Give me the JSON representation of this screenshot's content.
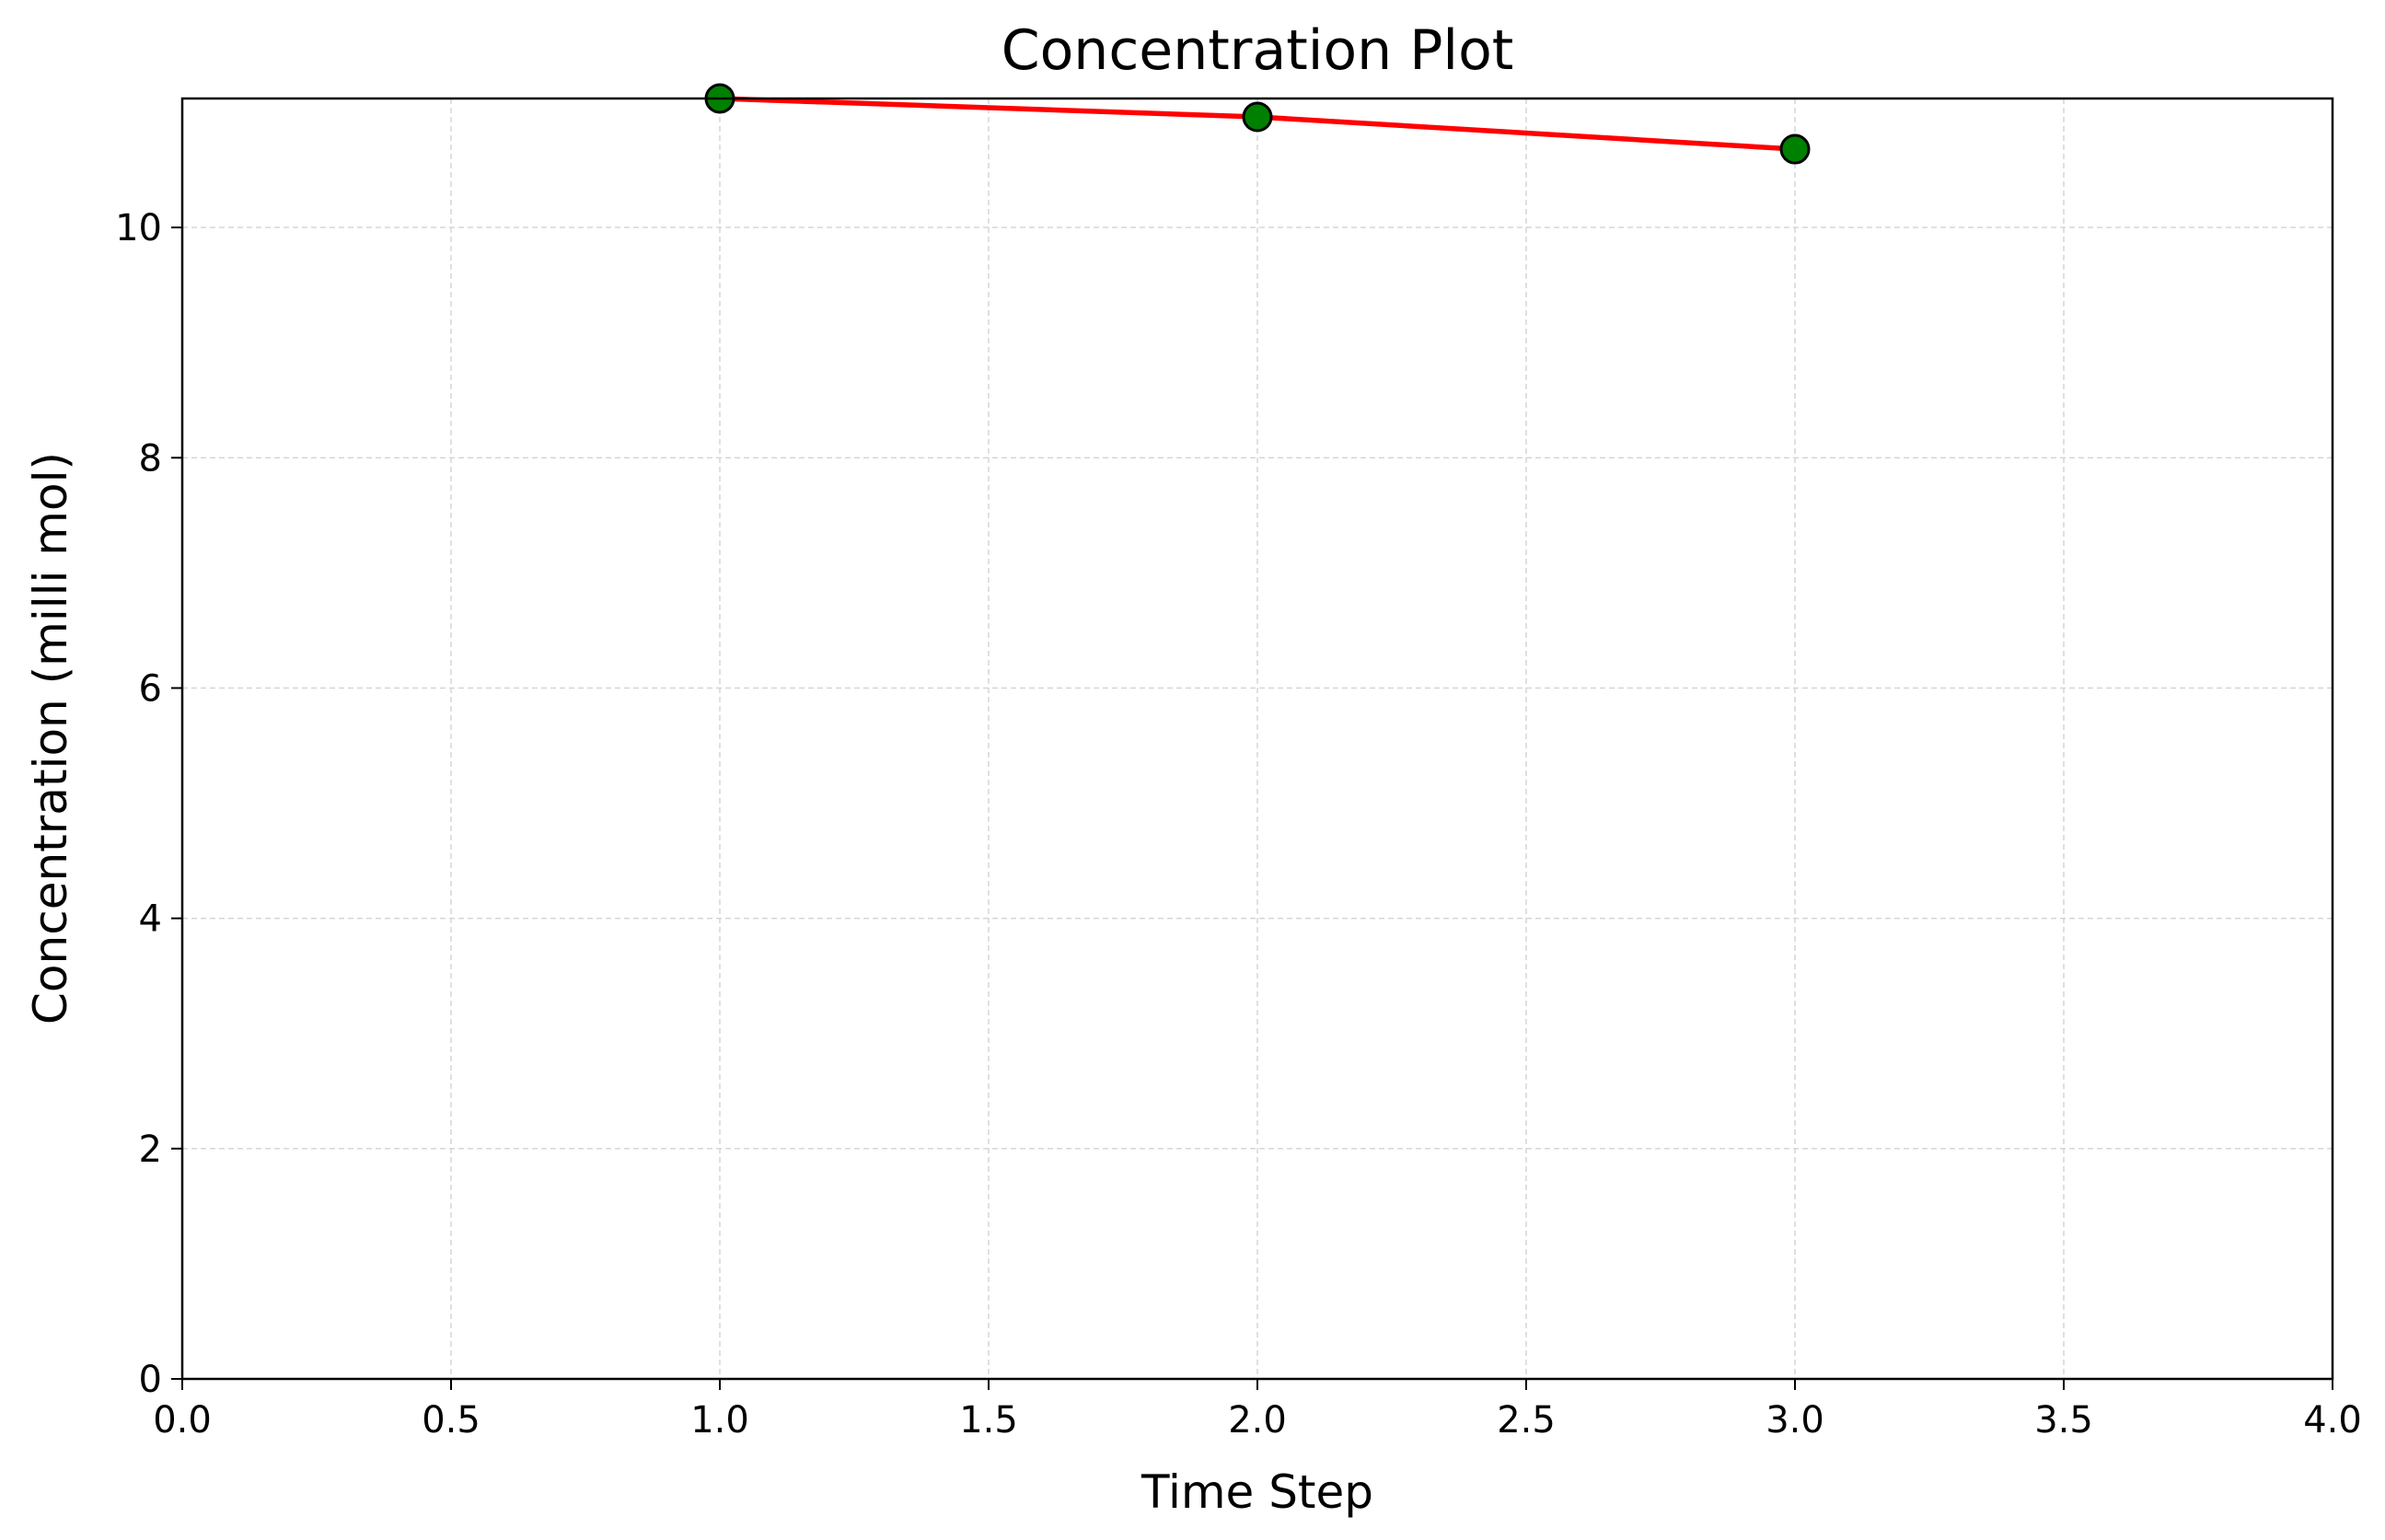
{
  "chart_data": {
    "type": "line",
    "title": "Concentration Plot",
    "xlabel": "Time Step",
    "ylabel": "Concentration (milli mol)",
    "xlim": [
      0,
      4
    ],
    "ylim": [
      0,
      11.12
    ],
    "x_ticks": [
      0.0,
      0.5,
      1.0,
      1.5,
      2.0,
      2.5,
      3.0,
      3.5,
      4.0
    ],
    "x_tick_labels": [
      "0.0",
      "0.5",
      "1.0",
      "1.5",
      "2.0",
      "2.5",
      "3.0",
      "3.5",
      "4.0"
    ],
    "y_ticks": [
      0,
      2,
      4,
      6,
      8,
      10
    ],
    "y_tick_labels": [
      "0",
      "2",
      "4",
      "6",
      "8",
      "10"
    ],
    "grid": true,
    "series": [
      {
        "x": [
          1,
          2,
          3
        ],
        "y": [
          11.12,
          10.96,
          10.68
        ],
        "line_color": "#ff0000",
        "marker_color": "#008000",
        "marker_edge_color": "#000000",
        "marker": "circle"
      }
    ]
  }
}
